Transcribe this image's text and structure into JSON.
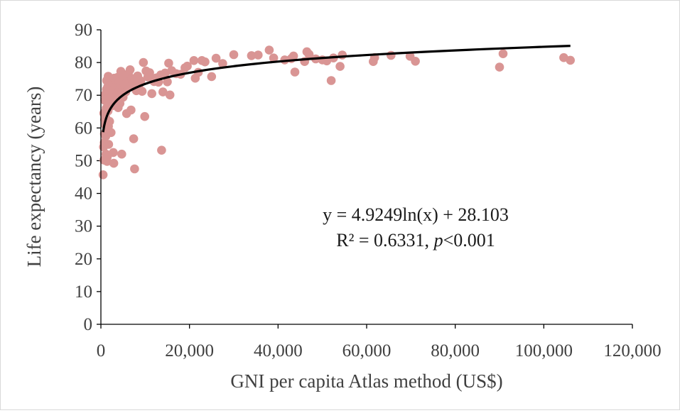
{
  "chart_data": {
    "type": "scatter",
    "xlabel": "GNI per capita Atlas method (US$)",
    "ylabel": "Life expectancy (years)",
    "xlim": [
      0,
      120000
    ],
    "ylim": [
      0,
      90
    ],
    "x_ticks": [
      "0",
      "20,000",
      "40,000",
      "60,000",
      "80,000",
      "100,000",
      "120,000"
    ],
    "y_ticks": [
      "0",
      "10",
      "20",
      "30",
      "40",
      "50",
      "60",
      "70",
      "80",
      "90"
    ],
    "grid": false,
    "point_color": "#d99594",
    "trendline": {
      "type": "logarithmic",
      "a": 4.9249,
      "b": 28.103,
      "x_range": [
        500,
        106000
      ],
      "equation_text": "y = 4.9249ln(x) + 28.103",
      "r2_text_prefix": "R² = 0.6331, ",
      "p_symbol": "p",
      "p_text_suffix": "<0.001"
    },
    "points": [
      [
        500,
        45.7
      ],
      [
        600,
        54.2
      ],
      [
        650,
        64.5
      ],
      [
        700,
        50.2
      ],
      [
        750,
        55.5
      ],
      [
        800,
        58.2
      ],
      [
        850,
        62.5
      ],
      [
        900,
        68.4
      ],
      [
        950,
        70.2
      ],
      [
        1000,
        61.0
      ],
      [
        1050,
        63.5
      ],
      [
        1100,
        57.5
      ],
      [
        1150,
        52.0
      ],
      [
        1200,
        66.0
      ],
      [
        1250,
        71.8
      ],
      [
        1300,
        74.5
      ],
      [
        1350,
        59.5
      ],
      [
        1400,
        49.8
      ],
      [
        1450,
        51.2
      ],
      [
        1500,
        68.9
      ],
      [
        1550,
        72.6
      ],
      [
        1600,
        65.2
      ],
      [
        1650,
        75.8
      ],
      [
        1700,
        60.5
      ],
      [
        1750,
        55.0
      ],
      [
        1800,
        70.5
      ],
      [
        1850,
        73.4
      ],
      [
        1900,
        67.2
      ],
      [
        1950,
        62.0
      ],
      [
        2000,
        71.3
      ],
      [
        2100,
        69.0
      ],
      [
        2200,
        74.8
      ],
      [
        2300,
        58.6
      ],
      [
        2400,
        72.0
      ],
      [
        2500,
        66.8
      ],
      [
        2600,
        73.9
      ],
      [
        2700,
        70.8
      ],
      [
        2800,
        52.5
      ],
      [
        2900,
        49.2
      ],
      [
        3000,
        75.2
      ],
      [
        3100,
        68.3
      ],
      [
        3200,
        72.9
      ],
      [
        3300,
        71.1
      ],
      [
        3400,
        74.1
      ],
      [
        3500,
        69.8
      ],
      [
        3600,
        73.5
      ],
      [
        3700,
        70.2
      ],
      [
        3800,
        75.5
      ],
      [
        3900,
        66.2
      ],
      [
        4000,
        72.4
      ],
      [
        4100,
        74.0
      ],
      [
        4200,
        71.6
      ],
      [
        4300,
        67.5
      ],
      [
        4400,
        73.2
      ],
      [
        4500,
        77.3
      ],
      [
        4600,
        70.6
      ],
      [
        4700,
        52.0
      ],
      [
        4800,
        74.6
      ],
      [
        4900,
        72.2
      ],
      [
        5000,
        69.4
      ],
      [
        5200,
        75.8
      ],
      [
        5400,
        73.0
      ],
      [
        5600,
        71.0
      ],
      [
        5800,
        64.4
      ],
      [
        6000,
        74.3
      ],
      [
        6200,
        76.6
      ],
      [
        6400,
        72.7
      ],
      [
        6600,
        77.8
      ],
      [
        6800,
        65.5
      ],
      [
        7000,
        75.1
      ],
      [
        7200,
        73.6
      ],
      [
        7400,
        56.7
      ],
      [
        7600,
        47.5
      ],
      [
        7800,
        74.9
      ],
      [
        8000,
        71.4
      ],
      [
        8300,
        75.9
      ],
      [
        8600,
        73.1
      ],
      [
        9000,
        74.4
      ],
      [
        9300,
        71.2
      ],
      [
        9600,
        80.0
      ],
      [
        9900,
        63.5
      ],
      [
        10200,
        77.4
      ],
      [
        10600,
        75.6
      ],
      [
        11000,
        76.9
      ],
      [
        11500,
        70.5
      ],
      [
        12000,
        74.2
      ],
      [
        12500,
        75.3
      ],
      [
        13000,
        74.0
      ],
      [
        13500,
        76.2
      ],
      [
        13700,
        53.2
      ],
      [
        14000,
        71.0
      ],
      [
        14500,
        76.8
      ],
      [
        15000,
        74.1
      ],
      [
        15300,
        79.8
      ],
      [
        15600,
        70.1
      ],
      [
        16000,
        77.5
      ],
      [
        17000,
        76.6
      ],
      [
        18000,
        76.4
      ],
      [
        19000,
        78.4
      ],
      [
        19500,
        78.9
      ],
      [
        21000,
        80.6
      ],
      [
        21300,
        75.2
      ],
      [
        22000,
        77.0
      ],
      [
        22800,
        80.6
      ],
      [
        23500,
        80.2
      ],
      [
        25000,
        75.7
      ],
      [
        26000,
        81.3
      ],
      [
        27500,
        79.7
      ],
      [
        30000,
        82.4
      ],
      [
        34000,
        82.1
      ],
      [
        35500,
        82.3
      ],
      [
        38000,
        83.8
      ],
      [
        39000,
        81.4
      ],
      [
        41500,
        80.8
      ],
      [
        43000,
        81.2
      ],
      [
        43500,
        82.0
      ],
      [
        43800,
        77.1
      ],
      [
        46000,
        80.3
      ],
      [
        46500,
        83.3
      ],
      [
        47000,
        82.5
      ],
      [
        48500,
        81.1
      ],
      [
        50000,
        80.8
      ],
      [
        51000,
        80.5
      ],
      [
        52000,
        74.5
      ],
      [
        52500,
        81.4
      ],
      [
        54000,
        78.8
      ],
      [
        54500,
        82.3
      ],
      [
        61500,
        80.3
      ],
      [
        61800,
        81.5
      ],
      [
        65500,
        82.2
      ],
      [
        69800,
        81.9
      ],
      [
        71000,
        80.4
      ],
      [
        90000,
        78.6
      ],
      [
        90800,
        82.7
      ],
      [
        104500,
        81.5
      ],
      [
        106000,
        80.7
      ]
    ]
  }
}
